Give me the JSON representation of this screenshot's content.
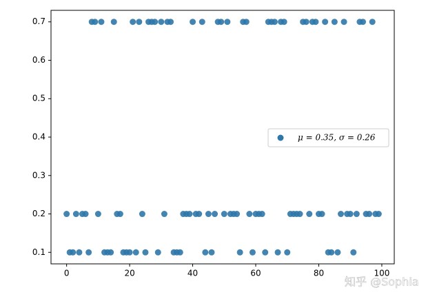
{
  "chart_data": {
    "type": "scatter",
    "x": [
      0,
      1,
      2,
      3,
      4,
      5,
      6,
      7,
      8,
      9,
      10,
      11,
      12,
      13,
      14,
      15,
      16,
      17,
      18,
      19,
      20,
      21,
      22,
      23,
      24,
      25,
      26,
      27,
      28,
      29,
      30,
      31,
      32,
      33,
      34,
      35,
      36,
      37,
      38,
      39,
      40,
      41,
      42,
      43,
      44,
      45,
      46,
      47,
      48,
      49,
      50,
      51,
      52,
      53,
      54,
      55,
      56,
      57,
      58,
      59,
      60,
      61,
      62,
      63,
      64,
      65,
      66,
      67,
      68,
      69,
      70,
      71,
      72,
      73,
      74,
      75,
      76,
      77,
      78,
      79,
      80,
      81,
      82,
      83,
      84,
      85,
      86,
      87,
      88,
      89,
      90,
      91,
      92,
      93,
      94,
      95,
      96,
      97,
      98,
      99
    ],
    "series": [
      {
        "name": "μ = 0.35,  σ = 0.26",
        "color": "#2f77a8",
        "values": [
          0.2,
          0.1,
          0.1,
          0.2,
          0.1,
          0.2,
          0.2,
          0.1,
          0.7,
          0.7,
          0.2,
          0.7,
          0.1,
          0.1,
          0.1,
          0.7,
          0.2,
          0.2,
          0.1,
          0.1,
          0.1,
          0.7,
          0.1,
          0.7,
          0.2,
          0.1,
          0.7,
          0.7,
          0.7,
          0.1,
          0.7,
          0.2,
          0.7,
          0.7,
          0.1,
          0.1,
          0.1,
          0.2,
          0.2,
          0.2,
          0.7,
          0.2,
          0.2,
          0.7,
          0.1,
          0.2,
          0.1,
          0.2,
          0.7,
          0.7,
          0.2,
          0.7,
          0.2,
          0.2,
          0.2,
          0.1,
          0.7,
          0.7,
          0.2,
          0.1,
          0.2,
          0.2,
          0.2,
          0.1,
          0.7,
          0.7,
          0.7,
          0.1,
          0.7,
          0.7,
          0.1,
          0.2,
          0.2,
          0.2,
          0.2,
          0.7,
          0.7,
          0.2,
          0.7,
          0.7,
          0.2,
          0.2,
          0.7,
          0.1,
          0.1,
          0.7,
          0.1,
          0.2,
          0.7,
          0.2,
          0.2,
          0.1,
          0.2,
          0.7,
          0.7,
          0.2,
          0.2,
          0.7,
          0.2,
          0.2
        ]
      }
    ],
    "xlim": [
      -4.95,
      103.95
    ],
    "xticks": [
      0,
      20,
      40,
      60,
      80,
      100
    ],
    "ylim": [
      0.07,
      0.73
    ],
    "yticks": [
      0.1,
      0.2,
      0.3,
      0.4,
      0.5,
      0.6,
      0.7
    ],
    "legend": "right",
    "watermark": "知乎 @Sophia"
  }
}
